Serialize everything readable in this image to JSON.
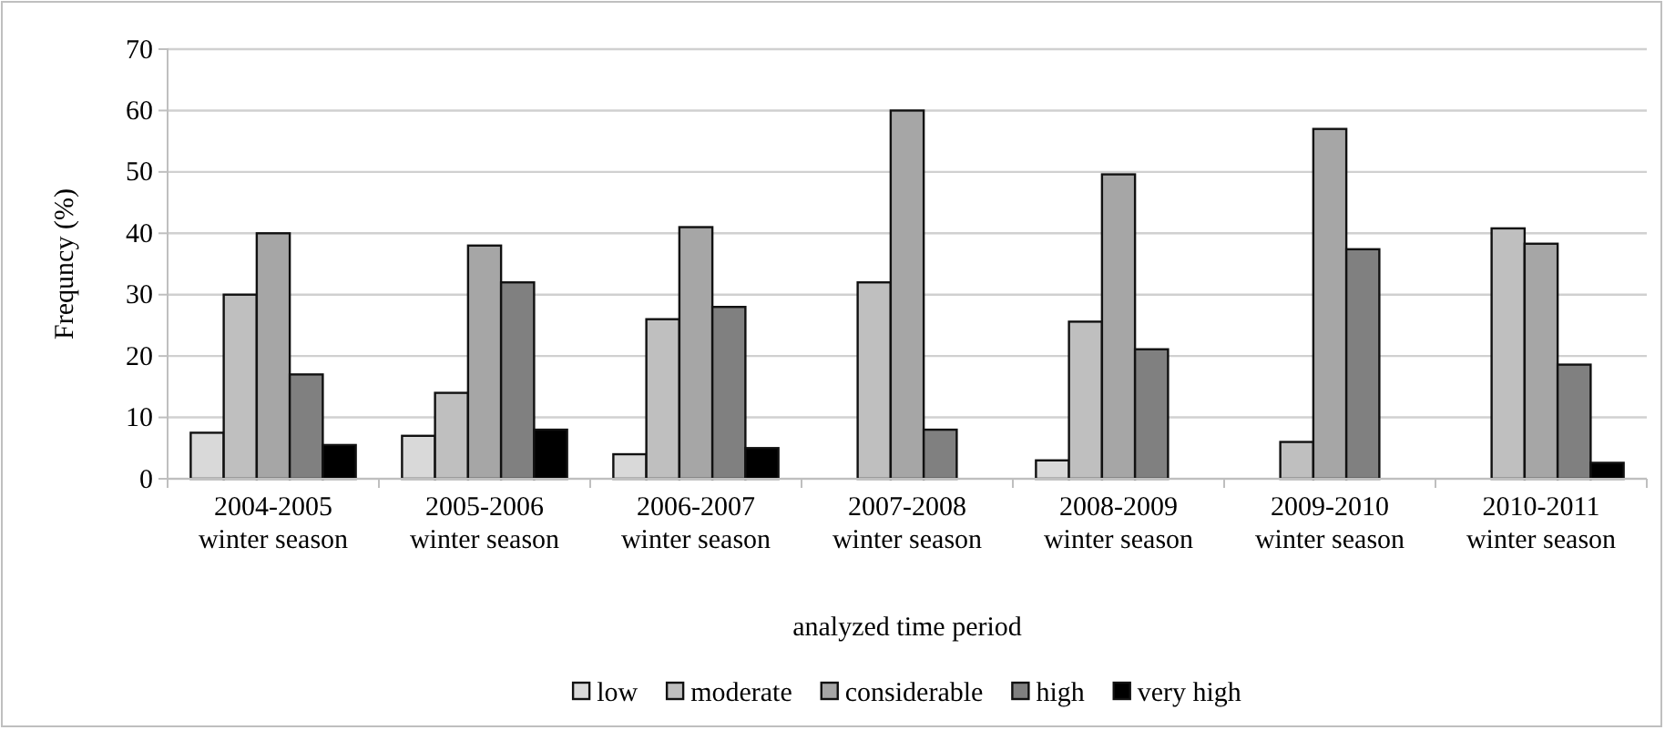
{
  "chart_data": {
    "type": "bar",
    "xlabel": "analyzed time period",
    "ylabel": "Frequncy (%)",
    "categories": [
      "2004-2005\nwinter season",
      "2005-2006\nwinter season",
      "2006-2007\nwinter season",
      "2007-2008\nwinter season",
      "2008-2009\nwinter season",
      "2009-2010\nwinter season",
      "2010-2011\nwinter season"
    ],
    "series": [
      {
        "name": "low",
        "color": "#d9d9d9",
        "values": [
          7.5,
          7,
          4,
          null,
          3,
          null,
          null
        ]
      },
      {
        "name": "moderate",
        "color": "#bfbfbf",
        "values": [
          30,
          14,
          26,
          32,
          25.6,
          6,
          40.8
        ]
      },
      {
        "name": "considerable",
        "color": "#a6a6a6",
        "values": [
          40,
          38,
          41,
          60,
          49.6,
          57,
          38.3
        ]
      },
      {
        "name": "high",
        "color": "#808080",
        "values": [
          17,
          32,
          28,
          8,
          21.1,
          37.4,
          18.6
        ]
      },
      {
        "name": "very high",
        "color": "#000000",
        "values": [
          5.5,
          8,
          5,
          null,
          null,
          null,
          2.6
        ]
      }
    ],
    "ylim": [
      0,
      70
    ],
    "yticks": [
      0,
      10,
      20,
      30,
      40,
      50,
      60,
      70
    ],
    "grid": "y",
    "legend": "bottom"
  }
}
